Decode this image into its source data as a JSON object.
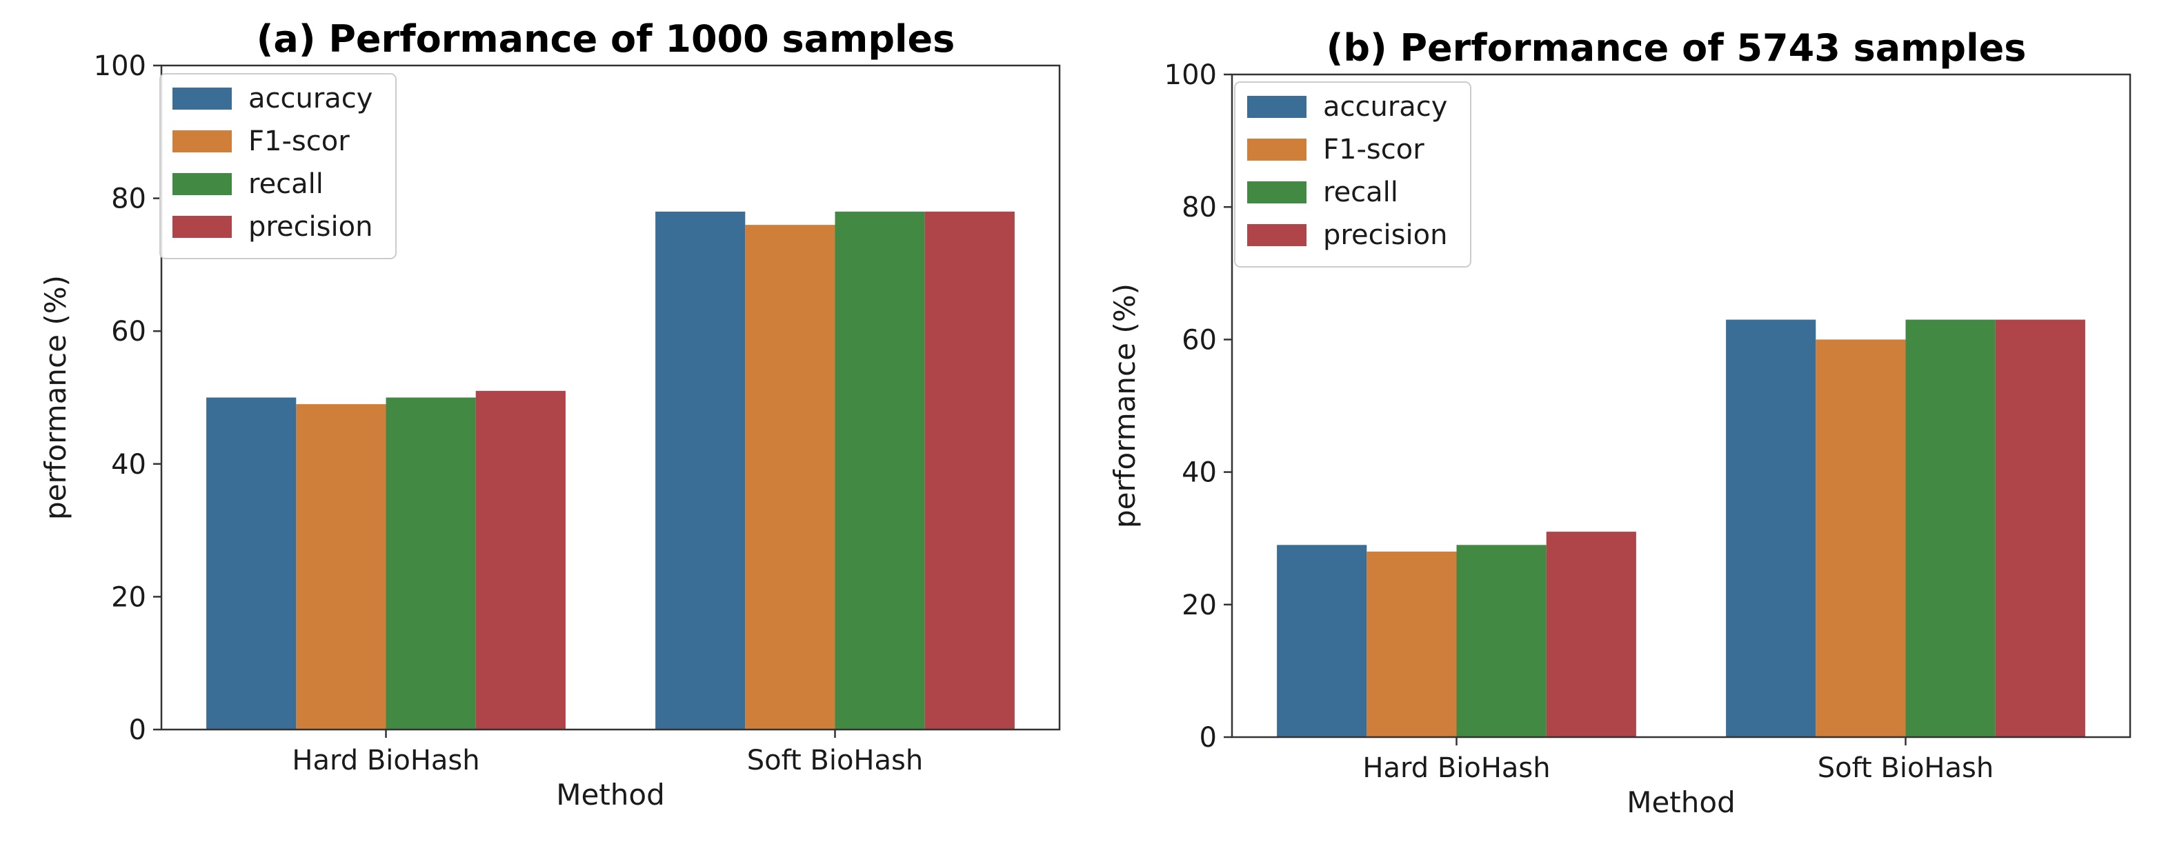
{
  "chart_data": [
    {
      "type": "bar",
      "title": "(a) Performance of 1000 samples",
      "xlabel": "Method",
      "ylabel": "performance (%)",
      "ylim": [
        0,
        100
      ],
      "yticks": [
        "0",
        "20",
        "40",
        "60",
        "80",
        "100"
      ],
      "legend_position": "top-left",
      "categories": [
        "Hard BioHash",
        "Soft BioHash"
      ],
      "series": [
        {
          "name": "accuracy",
          "color": "#3a6e96",
          "values": [
            50,
            78
          ]
        },
        {
          "name": "F1-scor",
          "color": "#d07f3a",
          "values": [
            49,
            76
          ]
        },
        {
          "name": "recall",
          "color": "#428a44",
          "values": [
            50,
            78
          ]
        },
        {
          "name": "precision",
          "color": "#b04549",
          "values": [
            51,
            78
          ]
        }
      ]
    },
    {
      "type": "bar",
      "title": "(b) Performance of 5743 samples",
      "xlabel": "Method",
      "ylabel": "performance (%)",
      "ylim": [
        0,
        100
      ],
      "yticks": [
        "0",
        "20",
        "40",
        "60",
        "80",
        "100"
      ],
      "legend_position": "top-left",
      "categories": [
        "Hard BioHash",
        "Soft BioHash"
      ],
      "series": [
        {
          "name": "accuracy",
          "color": "#3a6e96",
          "values": [
            29,
            63
          ]
        },
        {
          "name": "F1-scor",
          "color": "#d07f3a",
          "values": [
            28,
            60
          ]
        },
        {
          "name": "recall",
          "color": "#428a44",
          "values": [
            29,
            63
          ]
        },
        {
          "name": "precision",
          "color": "#b04549",
          "values": [
            31,
            63
          ]
        }
      ]
    }
  ]
}
